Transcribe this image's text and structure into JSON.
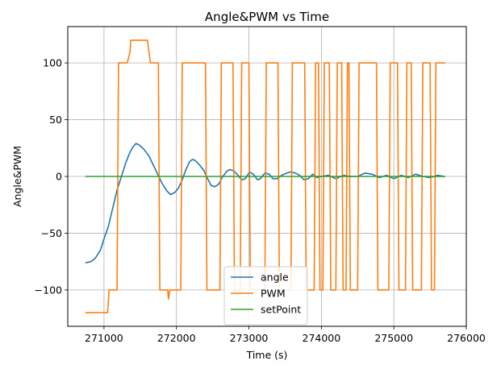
{
  "chart_data": {
    "type": "line",
    "title": "Angle&PWM vs Time",
    "xlabel": "Time (s)",
    "ylabel": "Angle&PWM",
    "xlim": [
      270500,
      276000
    ],
    "ylim": [
      -132,
      132
    ],
    "xticks": [
      271000,
      272000,
      273000,
      274000,
      275000,
      276000
    ],
    "yticks": [
      -100,
      -50,
      0,
      50,
      100
    ],
    "grid": true,
    "legend_position": "lower-center",
    "series": [
      {
        "name": "angle",
        "color": "#1f77b4",
        "points": [
          [
            270750,
            -76
          ],
          [
            270820,
            -75
          ],
          [
            270880,
            -72
          ],
          [
            270950,
            -65
          ],
          [
            271000,
            -55
          ],
          [
            271060,
            -44
          ],
          [
            271120,
            -28
          ],
          [
            271180,
            -12
          ],
          [
            271250,
            2
          ],
          [
            271300,
            12
          ],
          [
            271350,
            20
          ],
          [
            271400,
            26
          ],
          [
            271440,
            29
          ],
          [
            271480,
            28
          ],
          [
            271550,
            24
          ],
          [
            271620,
            18
          ],
          [
            271680,
            10
          ],
          [
            271740,
            2
          ],
          [
            271800,
            -6
          ],
          [
            271870,
            -13
          ],
          [
            271920,
            -16
          ],
          [
            271980,
            -14
          ],
          [
            272030,
            -10
          ],
          [
            272080,
            -3
          ],
          [
            272130,
            6
          ],
          [
            272180,
            13
          ],
          [
            272220,
            15
          ],
          [
            272260,
            14
          ],
          [
            272320,
            10
          ],
          [
            272380,
            5
          ],
          [
            272430,
            -2
          ],
          [
            272480,
            -8
          ],
          [
            272530,
            -9
          ],
          [
            272580,
            -7
          ],
          [
            272640,
            0
          ],
          [
            272700,
            5
          ],
          [
            272740,
            6
          ],
          [
            272790,
            5
          ],
          [
            272850,
            1
          ],
          [
            272900,
            -3
          ],
          [
            272950,
            -2
          ],
          [
            273010,
            4
          ],
          [
            273060,
            2
          ],
          [
            273120,
            -3
          ],
          [
            273160,
            -2
          ],
          [
            273220,
            3
          ],
          [
            273280,
            2
          ],
          [
            273330,
            -2
          ],
          [
            273390,
            -2
          ],
          [
            273450,
            1
          ],
          [
            273520,
            3
          ],
          [
            273580,
            4
          ],
          [
            273640,
            3
          ],
          [
            273700,
            1
          ],
          [
            273760,
            -3
          ],
          [
            273820,
            -2
          ],
          [
            273880,
            2
          ],
          [
            273940,
            -1
          ],
          [
            274000,
            0
          ],
          [
            274100,
            1
          ],
          [
            274200,
            -2
          ],
          [
            274300,
            1
          ],
          [
            274400,
            0
          ],
          [
            274500,
            0
          ],
          [
            274600,
            3
          ],
          [
            274700,
            2
          ],
          [
            274800,
            -1
          ],
          [
            274900,
            1
          ],
          [
            275000,
            -2
          ],
          [
            275100,
            1
          ],
          [
            275200,
            -1
          ],
          [
            275300,
            2
          ],
          [
            275400,
            0
          ],
          [
            275500,
            -1
          ],
          [
            275600,
            1
          ],
          [
            275700,
            0
          ]
        ]
      },
      {
        "name": "PWM",
        "color": "#ff7f0e",
        "points": [
          [
            270750,
            -120
          ],
          [
            271050,
            -120
          ],
          [
            271070,
            -100
          ],
          [
            271180,
            -100
          ],
          [
            271200,
            100
          ],
          [
            271320,
            100
          ],
          [
            271360,
            110
          ],
          [
            271370,
            120
          ],
          [
            271600,
            120
          ],
          [
            271620,
            110
          ],
          [
            271640,
            100
          ],
          [
            271750,
            100
          ],
          [
            271770,
            -100
          ],
          [
            271880,
            -100
          ],
          [
            271890,
            -108
          ],
          [
            271910,
            -100
          ],
          [
            272060,
            -100
          ],
          [
            272080,
            100
          ],
          [
            272400,
            100
          ],
          [
            272420,
            -100
          ],
          [
            272600,
            -100
          ],
          [
            272620,
            100
          ],
          [
            272780,
            100
          ],
          [
            272800,
            -100
          ],
          [
            272880,
            -100
          ],
          [
            272900,
            100
          ],
          [
            273000,
            100
          ],
          [
            273020,
            -100
          ],
          [
            273220,
            -100
          ],
          [
            273240,
            100
          ],
          [
            273400,
            100
          ],
          [
            273420,
            -100
          ],
          [
            273580,
            -100
          ],
          [
            273600,
            100
          ],
          [
            273770,
            100
          ],
          [
            273790,
            -100
          ],
          [
            273900,
            -100
          ],
          [
            273920,
            100
          ],
          [
            273960,
            100
          ],
          [
            273980,
            -100
          ],
          [
            274020,
            -100
          ],
          [
            274040,
            100
          ],
          [
            274110,
            100
          ],
          [
            274130,
            -100
          ],
          [
            274200,
            -100
          ],
          [
            274220,
            100
          ],
          [
            274280,
            100
          ],
          [
            274300,
            -100
          ],
          [
            274340,
            -100
          ],
          [
            274360,
            100
          ],
          [
            274380,
            100
          ],
          [
            274400,
            -100
          ],
          [
            274500,
            -100
          ],
          [
            274520,
            100
          ],
          [
            274760,
            100
          ],
          [
            274780,
            -100
          ],
          [
            274930,
            -100
          ],
          [
            274950,
            100
          ],
          [
            275050,
            100
          ],
          [
            275070,
            -100
          ],
          [
            275160,
            -100
          ],
          [
            275180,
            100
          ],
          [
            275240,
            100
          ],
          [
            275260,
            -100
          ],
          [
            275380,
            -100
          ],
          [
            275400,
            100
          ],
          [
            275500,
            100
          ],
          [
            275520,
            -100
          ],
          [
            275560,
            -100
          ],
          [
            275580,
            100
          ],
          [
            275700,
            100
          ]
        ]
      },
      {
        "name": "setPoint",
        "color": "#2ca02c",
        "points": [
          [
            270750,
            0
          ],
          [
            275700,
            0
          ]
        ]
      }
    ]
  }
}
